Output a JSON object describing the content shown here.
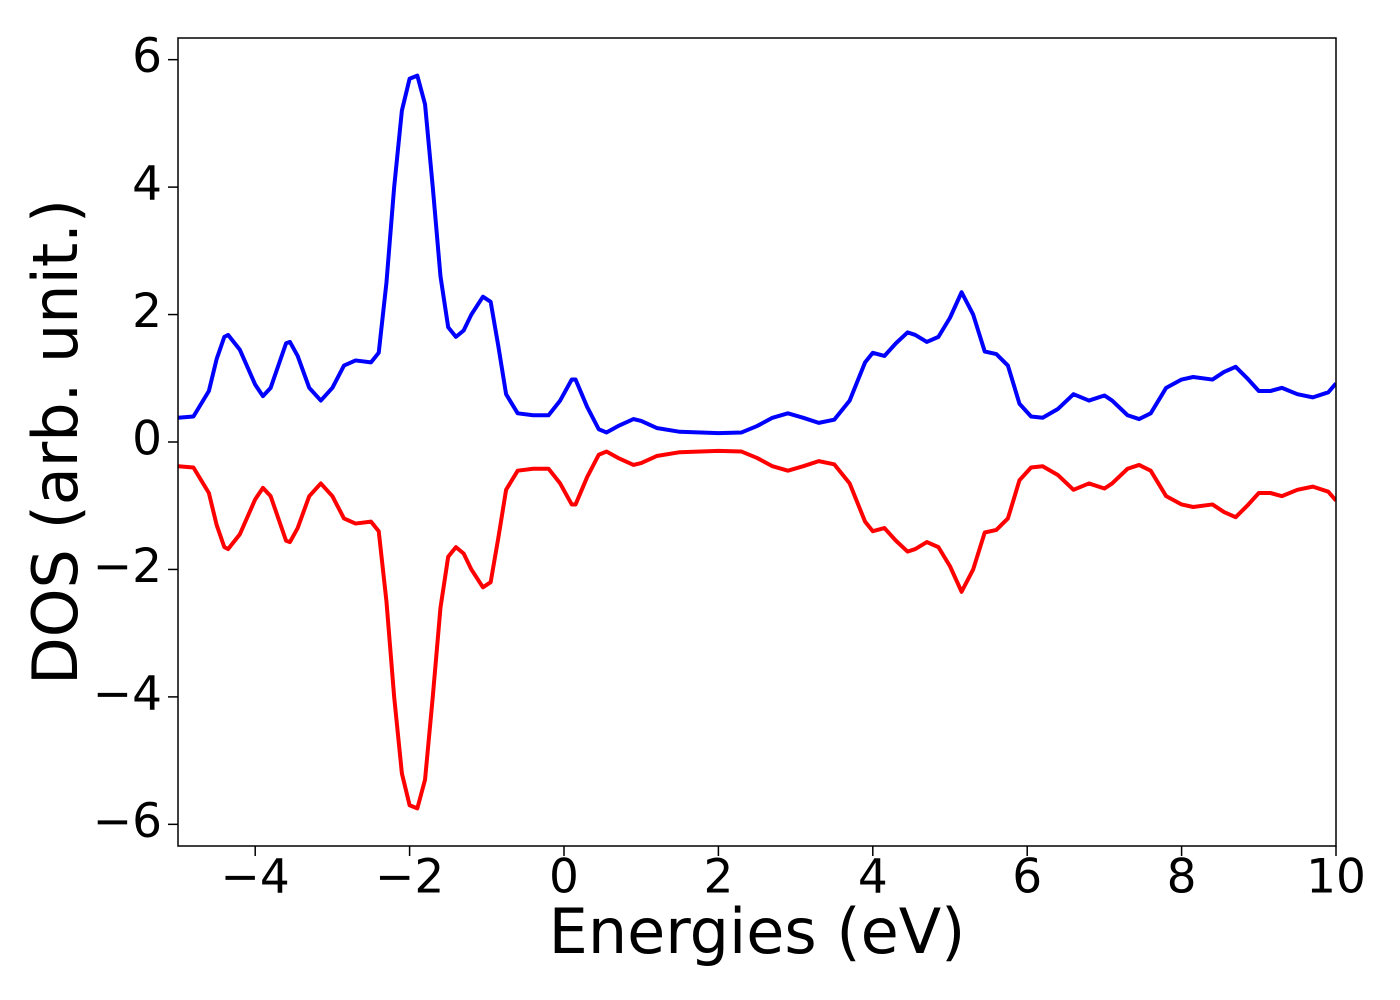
{
  "chart_data": {
    "type": "line",
    "x_label": "Energies (eV)",
    "y_label": "DOS (arb. unit.)",
    "x": [
      -5,
      -4.8,
      -4.6,
      -4.5,
      -4.4,
      -4.35,
      -4.2,
      -4.0,
      -3.9,
      -3.8,
      -3.7,
      -3.6,
      -3.55,
      -3.45,
      -3.3,
      -3.15,
      -3.0,
      -2.85,
      -2.7,
      -2.5,
      -2.4,
      -2.3,
      -2.2,
      -2.1,
      -2.0,
      -1.9,
      -1.8,
      -1.7,
      -1.6,
      -1.5,
      -1.4,
      -1.3,
      -1.2,
      -1.05,
      -0.95,
      -0.85,
      -0.75,
      -0.6,
      -0.4,
      -0.2,
      -0.05,
      0.1,
      0.15,
      0.3,
      0.45,
      0.55,
      0.7,
      0.9,
      1.0,
      1.2,
      1.5,
      2.0,
      2.3,
      2.5,
      2.7,
      2.9,
      3.1,
      3.3,
      3.5,
      3.7,
      3.9,
      4.0,
      4.15,
      4.3,
      4.45,
      4.55,
      4.7,
      4.85,
      5.0,
      5.15,
      5.3,
      5.45,
      5.6,
      5.75,
      5.9,
      6.05,
      6.2,
      6.4,
      6.6,
      6.8,
      7.0,
      7.1,
      7.3,
      7.45,
      7.6,
      7.8,
      8.0,
      8.15,
      8.4,
      8.55,
      8.7,
      8.85,
      9.0,
      9.15,
      9.3,
      9.5,
      9.7,
      9.9,
      10.0
    ],
    "series": [
      {
        "color": "#0000ff",
        "values": [
          0.38,
          0.4,
          0.8,
          1.3,
          1.65,
          1.68,
          1.45,
          0.9,
          0.72,
          0.85,
          1.2,
          1.55,
          1.57,
          1.35,
          0.85,
          0.65,
          0.85,
          1.2,
          1.28,
          1.25,
          1.4,
          2.5,
          4.0,
          5.2,
          5.7,
          5.75,
          5.3,
          4.0,
          2.6,
          1.8,
          1.65,
          1.75,
          2.0,
          2.28,
          2.2,
          1.5,
          0.75,
          0.45,
          0.42,
          0.42,
          0.65,
          0.98,
          0.98,
          0.55,
          0.2,
          0.15,
          0.25,
          0.36,
          0.33,
          0.22,
          0.16,
          0.14,
          0.15,
          0.25,
          0.38,
          0.45,
          0.38,
          0.3,
          0.35,
          0.65,
          1.25,
          1.4,
          1.35,
          1.55,
          1.72,
          1.68,
          1.57,
          1.65,
          1.95,
          2.35,
          2.0,
          1.42,
          1.38,
          1.2,
          0.6,
          0.4,
          0.38,
          0.52,
          0.75,
          0.65,
          0.73,
          0.65,
          0.42,
          0.36,
          0.45,
          0.85,
          0.98,
          1.02,
          0.98,
          1.1,
          1.18,
          1.0,
          0.8,
          0.8,
          0.85,
          0.75,
          0.7,
          0.78,
          0.92
        ]
      },
      {
        "color": "#ff0000",
        "values": [
          -0.38,
          -0.4,
          -0.8,
          -1.3,
          -1.65,
          -1.68,
          -1.45,
          -0.9,
          -0.72,
          -0.85,
          -1.2,
          -1.55,
          -1.57,
          -1.35,
          -0.85,
          -0.65,
          -0.85,
          -1.2,
          -1.28,
          -1.25,
          -1.4,
          -2.5,
          -4.0,
          -5.2,
          -5.7,
          -5.75,
          -5.3,
          -4.0,
          -2.6,
          -1.8,
          -1.65,
          -1.75,
          -2.0,
          -2.28,
          -2.2,
          -1.5,
          -0.75,
          -0.45,
          -0.42,
          -0.42,
          -0.65,
          -0.98,
          -0.98,
          -0.55,
          -0.2,
          -0.15,
          -0.25,
          -0.36,
          -0.33,
          -0.22,
          -0.16,
          -0.14,
          -0.15,
          -0.25,
          -0.38,
          -0.45,
          -0.38,
          -0.3,
          -0.35,
          -0.65,
          -1.25,
          -1.4,
          -1.35,
          -1.55,
          -1.72,
          -1.68,
          -1.57,
          -1.65,
          -1.95,
          -2.35,
          -2.0,
          -1.42,
          -1.38,
          -1.2,
          -0.6,
          -0.4,
          -0.38,
          -0.52,
          -0.75,
          -0.65,
          -0.73,
          -0.65,
          -0.42,
          -0.36,
          -0.45,
          -0.85,
          -0.98,
          -1.02,
          -0.98,
          -1.1,
          -1.18,
          -1.0,
          -0.8,
          -0.8,
          -0.85,
          -0.75,
          -0.7,
          -0.78,
          -0.92
        ]
      }
    ],
    "xlim": [
      -5,
      10
    ],
    "ylim": [
      -6.34,
      6.34
    ],
    "xticks": [
      {
        "value": -4,
        "label": "−4"
      },
      {
        "value": -2,
        "label": "−2"
      },
      0,
      2,
      4,
      6,
      8,
      10
    ],
    "yticks": [
      {
        "value": -6,
        "label": "−6"
      },
      {
        "value": -4,
        "label": "−4"
      },
      {
        "value": -2,
        "label": "−2"
      },
      0,
      2,
      4,
      6
    ],
    "grid": false
  }
}
